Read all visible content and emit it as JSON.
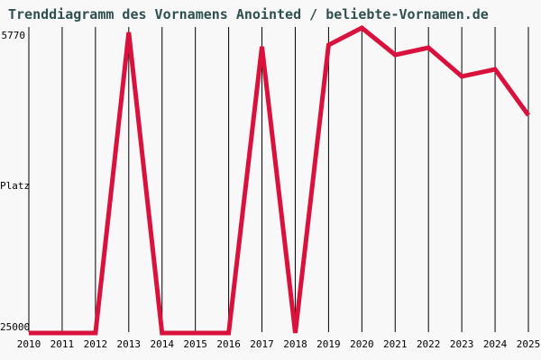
{
  "colors": {
    "background": "#F8F8F8",
    "title": "#2F4F4F",
    "line": "#D8123C",
    "grid": "#000000",
    "axis_text": "#000000"
  },
  "chart_data": {
    "type": "line",
    "title": "Trenddiagramm des Vornamens Anointed / beliebte-Vornamen.de",
    "xlabel": "",
    "ylabel": "Platz",
    "y_ticks": {
      "top": "5770",
      "bottom": "25000"
    },
    "ylim": [
      5770,
      25000
    ],
    "y_inverted": true,
    "grid": "vertical",
    "legend": "none",
    "x": [
      2010,
      2011,
      2012,
      2013,
      2014,
      2015,
      2016,
      2017,
      2018,
      2019,
      2020,
      2021,
      2022,
      2023,
      2024,
      2025
    ],
    "series": [
      {
        "name": "Anointed",
        "values": [
          25000,
          25000,
          25000,
          6050,
          25000,
          25000,
          25000,
          6950,
          25000,
          6850,
          5770,
          7470,
          7020,
          8830,
          8380,
          11270
        ]
      }
    ]
  }
}
